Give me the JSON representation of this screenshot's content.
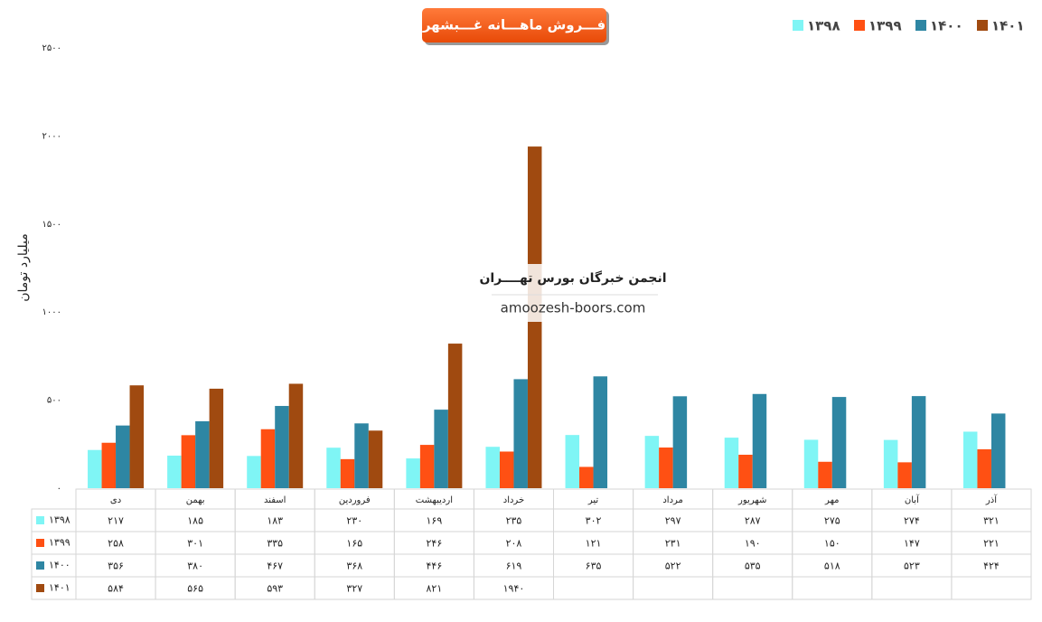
{
  "chart_data": {
    "type": "bar",
    "title": "فـــروش ماهـــانه غـــبشهر",
    "y_label": "میلیارد تومان",
    "watermark": [
      "انجمن خبرگان بورس تهــــران",
      "amoozesh-boors.com"
    ],
    "legend": "top-right",
    "categories": [
      "دی",
      "بهمن",
      "اسفند",
      "فروردین",
      "اردیبهشت",
      "خرداد",
      "تیر",
      "مرداد",
      "شهریور",
      "مهر",
      "آبان",
      "آذر"
    ],
    "ylim": [
      0,
      2500
    ],
    "yticks": [
      {
        "value": 0,
        "label": "۰"
      },
      {
        "value": 500,
        "label": "۵۰۰"
      },
      {
        "value": 1000,
        "label": "۱۰۰۰"
      },
      {
        "value": 1500,
        "label": "۱۵۰۰"
      },
      {
        "value": 2000,
        "label": "۲۰۰۰"
      },
      {
        "value": 2500,
        "label": "۲۵۰۰"
      }
    ],
    "series": [
      {
        "name": "۱۳۹۸",
        "color": "#7ff5f5",
        "values": [
          217,
          185,
          183,
          230,
          169,
          235,
          302,
          297,
          287,
          275,
          274,
          321
        ],
        "value_labels": [
          "۲۱۷",
          "۱۸۵",
          "۱۸۳",
          "۲۳۰",
          "۱۶۹",
          "۲۳۵",
          "۳۰۲",
          "۲۹۷",
          "۲۸۷",
          "۲۷۵",
          "۲۷۴",
          "۳۲۱"
        ]
      },
      {
        "name": "۱۳۹۹",
        "color": "#ff5013",
        "values": [
          258,
          301,
          335,
          165,
          246,
          208,
          121,
          231,
          190,
          150,
          147,
          221
        ],
        "value_labels": [
          "۲۵۸",
          "۳۰۱",
          "۳۳۵",
          "۱۶۵",
          "۲۴۶",
          "۲۰۸",
          "۱۲۱",
          "۲۳۱",
          "۱۹۰",
          "۱۵۰",
          "۱۴۷",
          "۲۲۱"
        ]
      },
      {
        "name": "۱۴۰۰",
        "color": "#2e86a3",
        "values": [
          356,
          380,
          467,
          368,
          446,
          619,
          635,
          522,
          535,
          518,
          523,
          424
        ],
        "value_labels": [
          "۳۵۶",
          "۳۸۰",
          "۴۶۷",
          "۳۶۸",
          "۴۴۶",
          "۶۱۹",
          "۶۳۵",
          "۵۲۲",
          "۵۳۵",
          "۵۱۸",
          "۵۲۳",
          "۴۲۴"
        ]
      },
      {
        "name": "۱۴۰۱",
        "color": "#a04a10",
        "values": [
          584,
          565,
          593,
          327,
          821,
          1940,
          null,
          null,
          null,
          null,
          null,
          null
        ],
        "value_labels": [
          "۵۸۴",
          "۵۶۵",
          "۵۹۳",
          "۳۲۷",
          "۸۲۱",
          "۱۹۴۰",
          null,
          null,
          null,
          null,
          null,
          null
        ]
      }
    ]
  }
}
